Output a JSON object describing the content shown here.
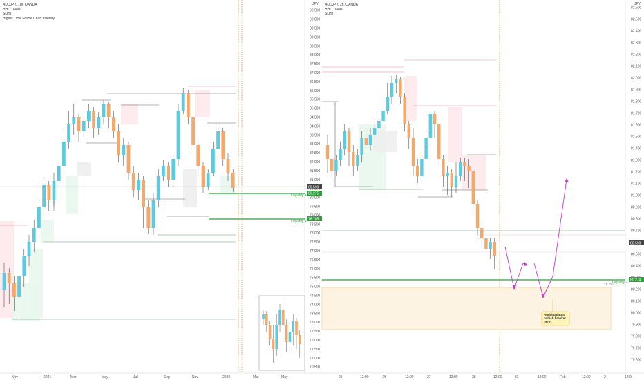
{
  "left_panel": {
    "header": [
      "AUDJPY, 1W, OANDA",
      "HHLL Tools",
      "SLHT",
      "Higher Time Frame Chart Overlay"
    ],
    "price_axis": [
      "90.500",
      "90.000",
      "89.500",
      "89.000",
      "88.500",
      "88.000",
      "87.500",
      "87.000",
      "86.500",
      "86.000",
      "85.500",
      "85.000",
      "84.500",
      "84.000",
      "83.500",
      "83.000",
      "82.500",
      "82.000",
      "81.500",
      "81.000",
      "80.500",
      "80.000",
      "79.500",
      "79.000",
      "78.500",
      "78.000",
      "77.500",
      "77.000",
      "76.500",
      "76.000",
      "75.500",
      "75.000",
      "74.500",
      "74.000",
      "73.500",
      "73.000",
      "72.500",
      "72.000",
      "71.500",
      "71.000",
      "70.500"
    ],
    "time_axis": [
      "Nov",
      "2021",
      "Mar",
      "May",
      "Jul",
      "Sep",
      "Nov",
      "2022",
      "Mar",
      "May"
    ],
    "current_price_tag": "80.590",
    "liquidity_labels": [
      {
        "text": "Liquidity +",
        "tag": "80.275"
      },
      {
        "text": "Liquidity +",
        "tag": "78.785"
      }
    ],
    "currency": "JPY"
  },
  "right_panel": {
    "header": [
      "AUDJPY, 2h, OANDA",
      "HHLL Tools",
      "SLHT"
    ],
    "price_axis": [
      "82.600",
      "82.500",
      "82.400",
      "82.300",
      "82.200",
      "82.100",
      "82.000",
      "81.900",
      "81.800",
      "81.700",
      "81.600",
      "81.500",
      "81.400",
      "81.300",
      "81.200",
      "81.100",
      "81.000",
      "80.900",
      "80.800",
      "80.700",
      "80.600",
      "80.500",
      "80.400",
      "80.300",
      "80.200",
      "80.100",
      "80.000",
      "79.900",
      "79.800",
      "79.700",
      "79.600"
    ],
    "time_axis": [
      "25",
      "12:00",
      "26",
      "12:00",
      "27",
      "12:00",
      "28",
      "12:00",
      "31",
      "12:00",
      "Feb",
      "12:00",
      "2",
      "12:0"
    ],
    "current_price_tag": "80.590",
    "liquidity_label": {
      "text": "Liquidity +",
      "tag": "80.274"
    },
    "ltf_label": "LTF OH",
    "annotation": "Anticipating a bullish breaker here",
    "currency": "JPY"
  },
  "chart_data": [
    {
      "type": "candlestick",
      "title": "AUDJPY, 1W, OANDA",
      "ylim": [
        70.5,
        90.5
      ],
      "x_ticks": [
        "Nov",
        "2021",
        "Mar",
        "May",
        "Jul",
        "Sep",
        "Nov",
        "2022",
        "Mar",
        "May"
      ],
      "liquidity_levels": [
        80.275,
        78.785
      ],
      "current_price": 80.59
    },
    {
      "type": "candlestick",
      "title": "AUDJPY, 2h, OANDA",
      "ylim": [
        79.6,
        82.6
      ],
      "x_ticks": [
        "25",
        "12:00",
        "26",
        "12:00",
        "27",
        "12:00",
        "28",
        "12:00",
        "31",
        "12:00",
        "Feb",
        "12:00",
        "2",
        "12:0"
      ],
      "liquidity_levels": [
        80.274
      ],
      "current_price": 80.59
    }
  ],
  "colors": {
    "up": "#5ccbe0",
    "down": "#f5a86a",
    "liquidity": "#2e9e3f",
    "pink": "#e58aa0",
    "zone": "#fdf3e3",
    "zone_border": "#f0c98a",
    "projection": "#c040c8",
    "vline": "#f29a1e"
  }
}
